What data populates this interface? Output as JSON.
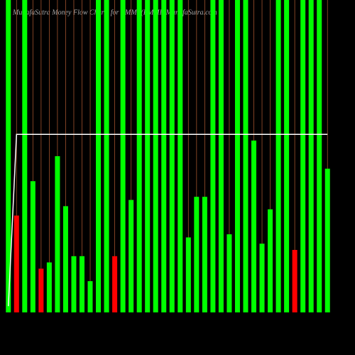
{
  "chart_data": {
    "type": "bar",
    "title": "MunafaSutra  Money Flow  Charts for PMMI  (PMMI)  MunafaSutra.com",
    "categories": [
      null,
      null,
      null,
      null,
      null,
      null,
      null,
      null,
      null,
      null,
      null,
      null,
      null,
      null,
      null,
      null,
      null,
      null,
      null,
      null,
      null,
      null,
      null,
      null,
      null,
      null,
      null,
      null,
      null,
      null,
      null,
      null,
      null,
      null,
      null,
      null,
      null,
      null,
      null,
      null
    ],
    "values": [
      100,
      31,
      100,
      42,
      14,
      16,
      50,
      34,
      18,
      18,
      10,
      100,
      100,
      18,
      100,
      36,
      100,
      100,
      100,
      100,
      100,
      100,
      24,
      37,
      37,
      100,
      100,
      25,
      100,
      100,
      55,
      22,
      33,
      100,
      100,
      20,
      100,
      100,
      100,
      46
    ],
    "colors": [
      "#00ff00",
      "#ff0000",
      "#00ff00",
      "#00ff00",
      "#ff0000",
      "#00ff00",
      "#00ff00",
      "#00ff00",
      "#00ff00",
      "#00ff00",
      "#00ff00",
      "#00ff00",
      "#00ff00",
      "#ff0000",
      "#00ff00",
      "#00ff00",
      "#00ff00",
      "#00ff00",
      "#00ff00",
      "#00ff00",
      "#00ff00",
      "#00ff00",
      "#00ff00",
      "#00ff00",
      "#00ff00",
      "#00ff00",
      "#00ff00",
      "#00ff00",
      "#00ff00",
      "#00ff00",
      "#00ff00",
      "#00ff00",
      "#00ff00",
      "#00ff00",
      "#00ff00",
      "#ff0000",
      "#00ff00",
      "#00ff00",
      "#00ff00",
      "#00ff00"
    ],
    "line": {
      "color": "#ffffff",
      "values": [
        2,
        57,
        57,
        57,
        57,
        57,
        57,
        57,
        57,
        57,
        57,
        57,
        57,
        57,
        57,
        57,
        57,
        57,
        57,
        57,
        57,
        57,
        57,
        57,
        57,
        57,
        57,
        57,
        57,
        57,
        57,
        57,
        57,
        57,
        57,
        57,
        57,
        57,
        57,
        57
      ]
    },
    "ylim": [
      0,
      100
    ]
  }
}
